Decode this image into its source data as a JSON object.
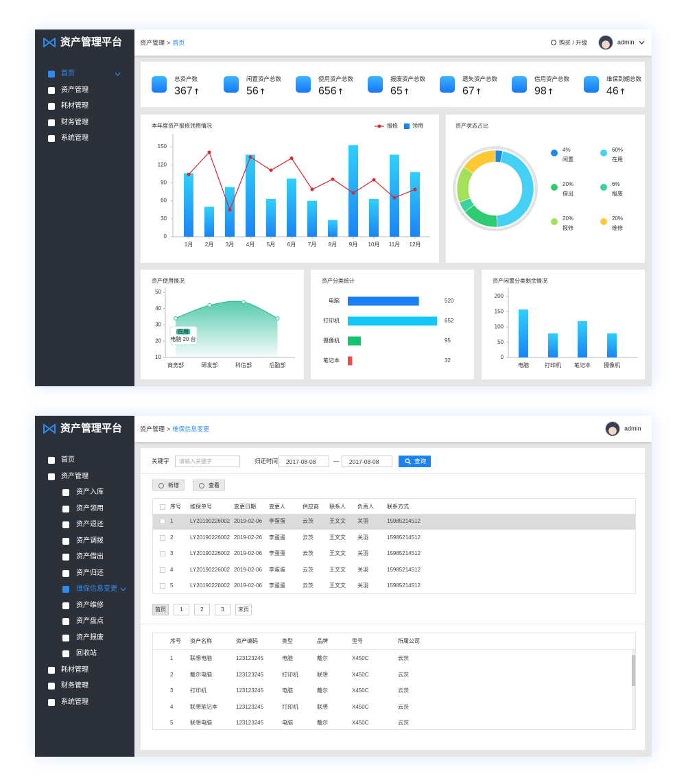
{
  "dashboard": {
    "brand": "资产管理平台",
    "breadcrumb": [
      "资产管理",
      "首页"
    ],
    "breadcrumb_separator": ">",
    "upgrade": "购买 / 升级",
    "user": "admin",
    "menu": [
      {
        "label": "首页",
        "active": true
      },
      {
        "label": "资产管理"
      },
      {
        "label": "耗材管理"
      },
      {
        "label": "财务管理"
      },
      {
        "label": "系统管理"
      }
    ],
    "stats": [
      {
        "label": "总资产数",
        "value": 367
      },
      {
        "label": "闲置资产总数",
        "value": 56
      },
      {
        "label": "使用资产总数",
        "value": 656
      },
      {
        "label": "报废资产总数",
        "value": 65
      },
      {
        "label": "遗失资产总数",
        "value": 67
      },
      {
        "label": "借用资产总数",
        "value": 98
      },
      {
        "label": "维保到期总数",
        "value": 46
      }
    ]
  },
  "chart_data": [
    {
      "type": "combo",
      "title": "本年度资产报修领用情况",
      "categories": [
        "1月",
        "2月",
        "3月",
        "4月",
        "5月",
        "6月",
        "7月",
        "8月",
        "9月",
        "10月",
        "11月",
        "12月"
      ],
      "series": [
        {
          "name": "报修",
          "type": "line",
          "color": "#d9282f",
          "values": [
            104,
            141,
            45,
            133,
            111,
            131,
            79,
            96,
            73,
            95,
            65,
            79
          ]
        },
        {
          "name": "领用",
          "type": "bar",
          "color": "#1a84f5",
          "values": [
            106,
            50,
            83,
            137,
            63,
            97,
            60,
            28,
            153,
            63,
            137,
            108
          ]
        }
      ],
      "ylim": [
        0,
        165
      ],
      "yticks": [
        0,
        30,
        60,
        90,
        120,
        150
      ]
    },
    {
      "type": "pie",
      "title": "资产状态占比",
      "categories": [
        "闲置",
        "在用",
        "借出",
        "报废",
        "报修",
        "维修"
      ],
      "values": [
        4,
        60,
        20,
        6,
        20,
        20
      ],
      "value_labels": [
        "4%",
        "60%",
        "20%",
        "6%",
        "20%",
        "20%"
      ],
      "colors": [
        "#1e88e5",
        "#45d0f5",
        "#2ecc71",
        "#38d39f",
        "#a5e05a",
        "#ffc933"
      ]
    },
    {
      "type": "area",
      "title": "资产使用情况",
      "categories": [
        "商务部",
        "研发部",
        "科信部",
        "后勤部"
      ],
      "values": [
        34,
        42,
        44,
        34
      ],
      "color": "#2ebf9a",
      "ylim": [
        10,
        50
      ],
      "yticks": [
        10,
        20,
        30,
        40,
        50
      ],
      "tooltip": {
        "title": "在用",
        "text": "电脑 20 台"
      }
    },
    {
      "type": "hbar",
      "title": "资产分类统计",
      "categories": [
        "电脑",
        "打印机",
        "摄像机",
        "笔记本"
      ],
      "values": [
        520,
        652,
        95,
        32
      ],
      "colors": [
        "#1a7ff0",
        "#12c6f5",
        "#13c36f",
        "#ee4b4b"
      ]
    },
    {
      "type": "bar",
      "title": "资产闲置分类剩余情况",
      "categories": [
        "电脑",
        "打印机",
        "笔记本",
        "摄像机"
      ],
      "values": [
        157,
        79,
        119,
        79
      ],
      "color": "#1a84f5",
      "ylim": [
        0,
        200
      ],
      "yticks": [
        0,
        50,
        100,
        150,
        200
      ]
    }
  ],
  "maintenance": {
    "brand": "资产管理平台",
    "breadcrumb": [
      "资产管理",
      "维保信息变更"
    ],
    "breadcrumb_separator": ">",
    "user": "admin",
    "menu": [
      {
        "label": "首页"
      },
      {
        "label": "资产管理",
        "children": [
          {
            "label": "资产入库"
          },
          {
            "label": "资产领用"
          },
          {
            "label": "资产退还"
          },
          {
            "label": "资产调拨"
          },
          {
            "label": "资产借出"
          },
          {
            "label": "资产归还"
          },
          {
            "label": "维保信息变更",
            "active": true
          },
          {
            "label": "资产维修"
          },
          {
            "label": "资产盘点"
          },
          {
            "label": "资产报废"
          },
          {
            "label": "回收站"
          }
        ]
      },
      {
        "label": "耗材管理"
      },
      {
        "label": "财务管理"
      },
      {
        "label": "系统管理"
      }
    ],
    "filter": {
      "keyword_label": "关键字",
      "keyword_placeholder": "请输入关键字",
      "date_label": "归还时间",
      "date_from": "2017-08-08",
      "date_separator": "—",
      "date_to": "2017-08-08",
      "search": "查询"
    },
    "actions": [
      "新增",
      "查看"
    ],
    "maintenance_table": {
      "columns": [
        "序号",
        "维保单号",
        "变更日期",
        "变更人",
        "供应商",
        "联系人",
        "负责人",
        "联系方式"
      ],
      "rows": [
        [
          "1",
          "LY20190226002",
          "2019-02-06",
          "李蛋蛋",
          "云茨",
          "王文文",
          "关羽",
          "15985214512"
        ],
        [
          "2",
          "LY20190226002",
          "2019-02-26",
          "李蛋蛋",
          "云茨",
          "王文文",
          "关羽",
          "15985214512"
        ],
        [
          "3",
          "LY20190226002",
          "2019-02-06",
          "李蛋蛋",
          "云茨",
          "王文文",
          "关羽",
          "15985214512"
        ],
        [
          "4",
          "LY20190226002",
          "2019-02-06",
          "李蛋蛋",
          "云茨",
          "王文文",
          "关羽",
          "15985214512"
        ],
        [
          "5",
          "LY20190226002",
          "2019-02-06",
          "李蛋蛋",
          "云茨",
          "王文文",
          "关羽",
          "15985214512"
        ]
      ]
    },
    "pagination": [
      "首页",
      "1",
      "2",
      "3",
      "末页"
    ],
    "asset_table": {
      "columns": [
        "序号",
        "资产名称",
        "资产编码",
        "类型",
        "品牌",
        "型号",
        "所属公司"
      ],
      "rows": [
        [
          "1",
          "联想电脑",
          "123123245",
          "电脑",
          "戴尔",
          "X450C",
          "云茨"
        ],
        [
          "2",
          "戴尔电脑",
          "123123245",
          "打印机",
          "联想",
          "X450C",
          "云茨"
        ],
        [
          "3",
          "打印机",
          "123123245",
          "电脑",
          "戴尔",
          "X450C",
          "云茨"
        ],
        [
          "4",
          "联想笔记本",
          "123123245",
          "打印机",
          "联想",
          "X450C",
          "云茨"
        ],
        [
          "5",
          "联想电脑",
          "123123245",
          "电脑",
          "戴尔",
          "X450C",
          "云茨"
        ]
      ]
    }
  }
}
